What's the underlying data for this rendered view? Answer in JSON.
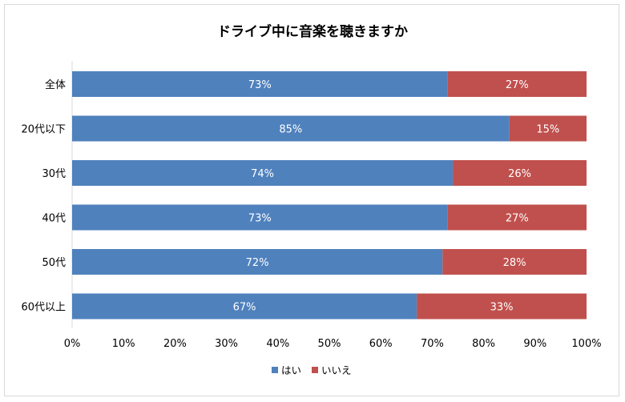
{
  "chart_data": {
    "type": "bar",
    "orientation": "horizontal",
    "stacked": "percent",
    "title": "ドライブ中に音楽を聴きますか",
    "categories": [
      "全体",
      "20代以下",
      "30代",
      "40代",
      "50代",
      "60代以上"
    ],
    "series": [
      {
        "name": "はい",
        "values": [
          73,
          85,
          74,
          73,
          72,
          67
        ],
        "labels": [
          "73%",
          "85%",
          "74%",
          "73%",
          "72%",
          "67%"
        ],
        "color": "#4f81bd"
      },
      {
        "name": "いいえ",
        "values": [
          27,
          15,
          26,
          27,
          28,
          33
        ],
        "labels": [
          "27%",
          "15%",
          "26%",
          "27%",
          "28%",
          "33%"
        ],
        "color": "#c0504d"
      }
    ],
    "xlim": [
      0,
      100
    ],
    "xticks": [
      "0%",
      "10%",
      "20%",
      "30%",
      "40%",
      "50%",
      "60%",
      "70%",
      "80%",
      "90%",
      "100%"
    ],
    "grid": false,
    "legend": "bottom"
  }
}
